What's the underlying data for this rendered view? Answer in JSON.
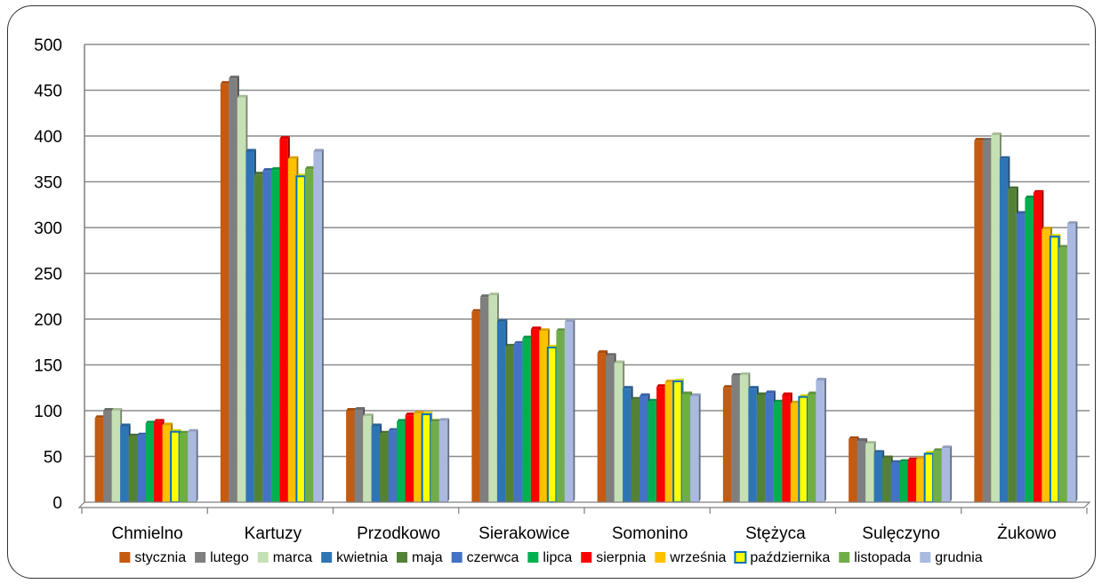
{
  "chart_data": {
    "type": "bar",
    "categories": [
      "Chmielno",
      "Kartuzy",
      "Przodkowo",
      "Sierakowice",
      "Somonino",
      "Stężyca",
      "Sulęczyno",
      "Żukowo"
    ],
    "ylim": [
      0,
      500
    ],
    "yticks": [
      "0",
      "50",
      "100",
      "150",
      "200",
      "250",
      "300",
      "350",
      "400",
      "450",
      "500"
    ],
    "grid": true,
    "legend_position": "bottom",
    "series": [
      {
        "name": "stycznia",
        "color": "#c55a11",
        "values": [
          92,
          457,
          100,
          208,
          163,
          125,
          69,
          395
        ]
      },
      {
        "name": "lutego",
        "color": "#7f7f7f",
        "values": [
          100,
          463,
          101,
          224,
          160,
          138,
          67,
          395
        ]
      },
      {
        "name": "marca",
        "color": "#c5e0b4",
        "values": [
          100,
          442,
          94,
          226,
          152,
          139,
          64,
          401
        ]
      },
      {
        "name": "kwietnia",
        "color": "#2e75b6",
        "values": [
          83,
          383,
          83,
          197,
          124,
          124,
          54,
          375
        ]
      },
      {
        "name": "maja",
        "color": "#548235",
        "values": [
          72,
          358,
          75,
          170,
          112,
          117,
          48,
          342
        ]
      },
      {
        "name": "czerwca",
        "color": "#4472c4",
        "values": [
          73,
          362,
          78,
          173,
          116,
          119,
          43,
          315
        ]
      },
      {
        "name": "lipca",
        "color": "#00b050",
        "values": [
          86,
          363,
          88,
          179,
          110,
          109,
          44,
          332
        ]
      },
      {
        "name": "sierpnia",
        "color": "#ff0000",
        "values": [
          88,
          397,
          95,
          189,
          126,
          117,
          46,
          338
        ]
      },
      {
        "name": "września",
        "color": "#ffc000",
        "values": [
          84,
          375,
          97,
          187,
          131,
          108,
          47,
          298
        ]
      },
      {
        "name": "października",
        "color": "#ffff00",
        "border": "#0070c0",
        "values": [
          77,
          356,
          96,
          169,
          132,
          115,
          53,
          290
        ]
      },
      {
        "name": "listopada",
        "color": "#70ad47",
        "values": [
          75,
          364,
          88,
          187,
          118,
          118,
          56,
          278
        ]
      },
      {
        "name": "grudnia",
        "color": "#a9b9e0",
        "values": [
          77,
          383,
          89,
          197,
          116,
          133,
          59,
          304
        ]
      }
    ]
  }
}
